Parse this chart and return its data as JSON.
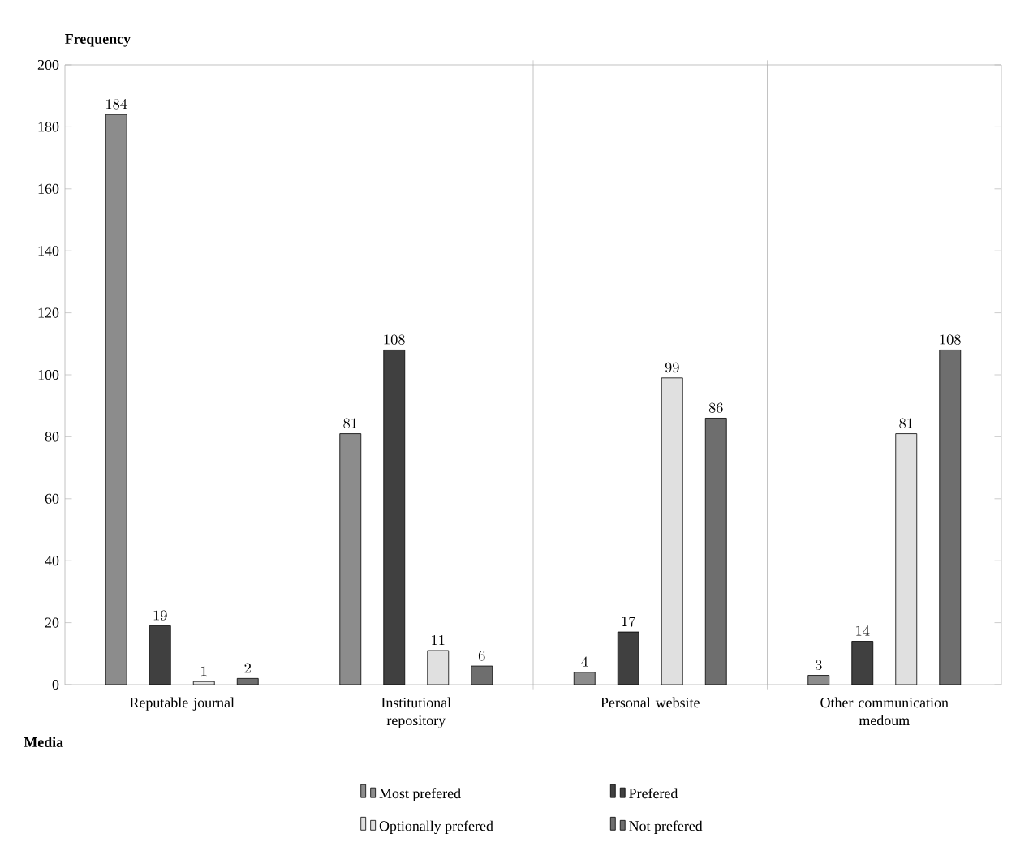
{
  "chart_data": {
    "type": "bar",
    "ylabel": "Frequency",
    "xlabel": "Media",
    "categories": [
      "Reputable journal",
      "Institutional repository",
      "Personal website",
      "Other communication medoum"
    ],
    "series": [
      {
        "name": "Most prefered",
        "color": "#8c8c8c",
        "values": [
          184,
          81,
          4,
          3
        ]
      },
      {
        "name": "Prefered",
        "color": "#404040",
        "values": [
          19,
          108,
          17,
          14
        ]
      },
      {
        "name": "Optionally prefered",
        "color": "#e0e0e0",
        "values": [
          1,
          11,
          99,
          81
        ]
      },
      {
        "name": "Not prefered",
        "color": "#6e6e6e",
        "values": [
          2,
          6,
          86,
          108
        ]
      }
    ],
    "ylim": [
      0,
      200
    ],
    "yticks": [
      0,
      20,
      40,
      60,
      80,
      100,
      120,
      140,
      160,
      180,
      200
    ],
    "data_labels": true,
    "grid": "x",
    "legend": "bottom"
  }
}
